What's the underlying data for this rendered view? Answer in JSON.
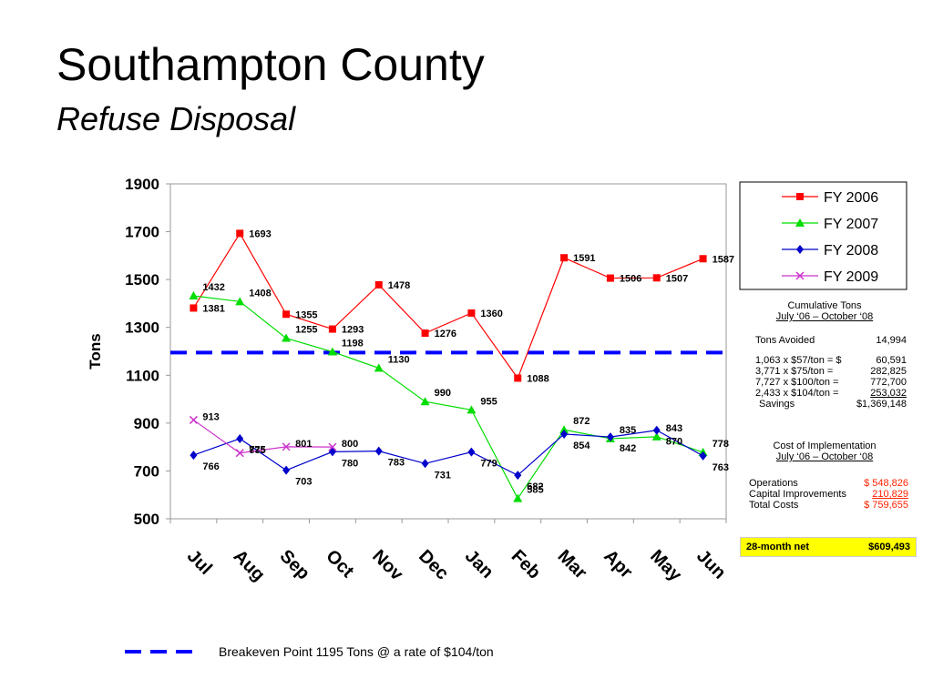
{
  "header": {
    "title": "Southampton County",
    "subtitle": "Refuse Disposal"
  },
  "chart_data": {
    "type": "line",
    "y_label": "Tons",
    "categories": [
      "Jul",
      "Aug",
      "Sep",
      "Oct",
      "Nov",
      "Dec",
      "Jan",
      "Feb",
      "Mar",
      "Apr",
      "May",
      "Jun"
    ],
    "series": [
      {
        "name": "FY 2006",
        "color": "#ff0000",
        "marker": "square",
        "values": [
          1381,
          1693,
          1355,
          1293,
          1478,
          1276,
          1360,
          1088,
          1591,
          1506,
          1507,
          1587
        ]
      },
      {
        "name": "FY 2007",
        "color": "#00dd00",
        "marker": "triangle",
        "values": [
          1432,
          1408,
          1255,
          1198,
          1130,
          990,
          955,
          585,
          872,
          835,
          843,
          778
        ]
      },
      {
        "name": "FY 2008",
        "color": "#0000cc",
        "marker": "diamond",
        "values": [
          766,
          835,
          703,
          780,
          783,
          731,
          779,
          682,
          854,
          842,
          870,
          763
        ]
      },
      {
        "name": "FY 2009",
        "color": "#cc33cc",
        "marker": "x",
        "values": [
          913,
          775,
          801,
          800,
          null,
          null,
          null,
          null,
          null,
          null,
          null,
          null
        ]
      }
    ],
    "ylim": [
      500,
      1900
    ],
    "yticks": [
      500,
      700,
      900,
      1100,
      1300,
      1500,
      1700,
      1900
    ],
    "reference_line": {
      "value": 1195,
      "color": "#0000ff",
      "label": "Breakeven Point 1195 Tons @ a rate of $104/ton"
    }
  },
  "summary": {
    "cumulative": {
      "title": "Cumulative Tons",
      "period": "July ‘06 – October ‘08",
      "avoided_label": "Tons Avoided",
      "avoided_value": "14,994",
      "rows": [
        [
          "1,063 x $57/ton   =  $",
          "60,591"
        ],
        [
          "3,771 x $75/ton   =",
          "282,825"
        ],
        [
          "7,727 x $100/ton =",
          "772,700"
        ],
        [
          "2,433 x $104/ton =",
          "253,032"
        ],
        [
          "Savings",
          "$1,369,148"
        ]
      ]
    },
    "cost": {
      "title": "Cost of Implementation",
      "period": "July ‘06 – October ‘08",
      "rows": [
        [
          "Operations",
          "$ 548,826"
        ],
        [
          "Capital Improvements",
          "210,829"
        ],
        [
          "Total Costs",
          "$ 759,655"
        ]
      ]
    },
    "net": [
      "28-month net",
      "$609,493"
    ]
  }
}
